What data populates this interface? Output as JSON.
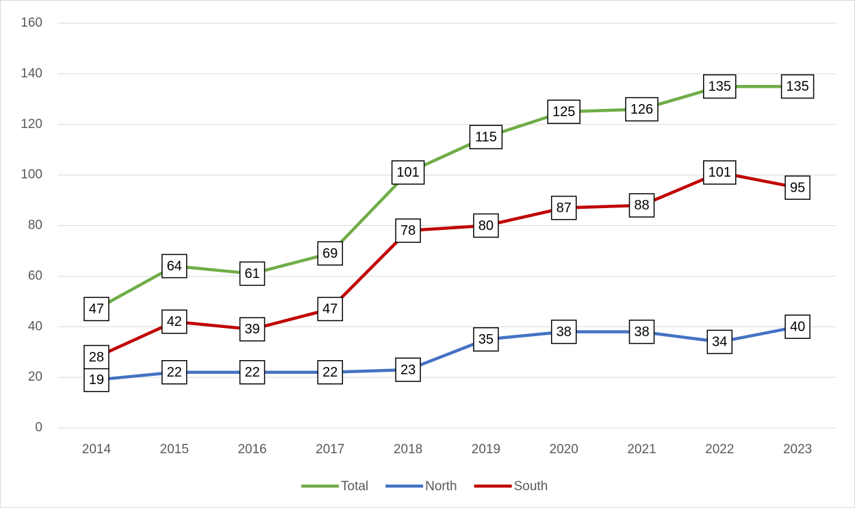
{
  "chart_data": {
    "type": "line",
    "categories": [
      "2014",
      "2015",
      "2016",
      "2017",
      "2018",
      "2019",
      "2020",
      "2021",
      "2022",
      "2023"
    ],
    "series": [
      {
        "name": "Total",
        "color": "#70ad47",
        "values": [
          47,
          64,
          61,
          69,
          101,
          115,
          125,
          126,
          135,
          135
        ]
      },
      {
        "name": "North",
        "color": "#4472c4",
        "values": [
          19,
          22,
          22,
          22,
          23,
          35,
          38,
          38,
          34,
          40
        ]
      },
      {
        "name": "South",
        "color": "#c00000",
        "values": [
          28,
          42,
          39,
          47,
          78,
          80,
          87,
          88,
          101,
          95
        ]
      }
    ],
    "ylim": [
      0,
      160
    ],
    "yticks": [
      0,
      20,
      40,
      60,
      80,
      100,
      120,
      140,
      160
    ],
    "grid": true,
    "legend": "bottom"
  }
}
